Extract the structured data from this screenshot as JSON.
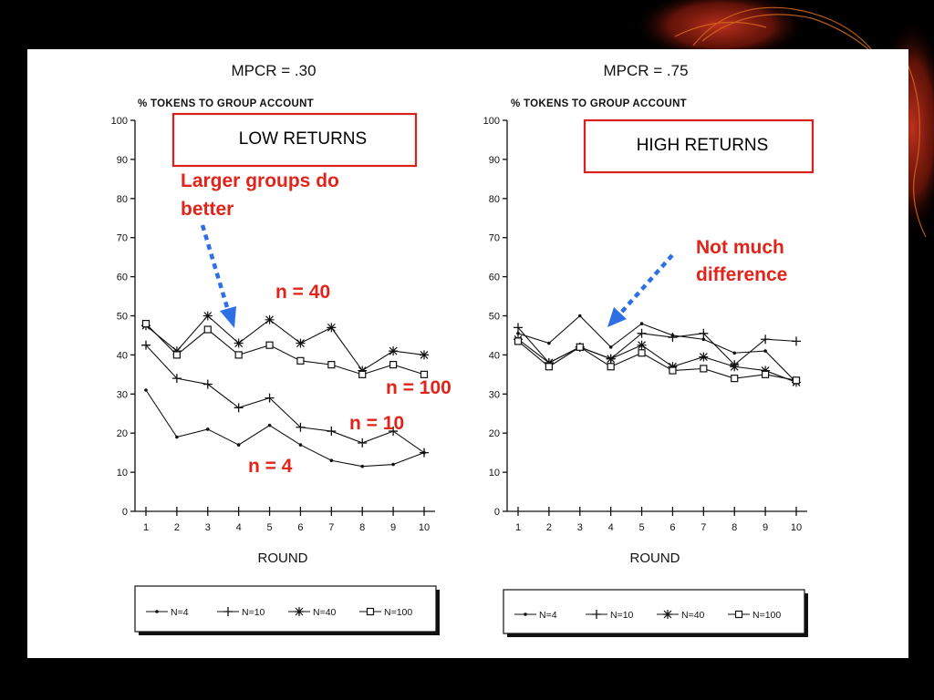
{
  "chart_data": [
    {
      "type": "line",
      "title": "MPCR = .30",
      "ylabel": "% TOKENS TO GROUP ACCOUNT",
      "xlabel": "ROUND",
      "ylim": [
        0,
        100
      ],
      "yticks": [
        0,
        10,
        20,
        30,
        40,
        50,
        60,
        70,
        80,
        90,
        100
      ],
      "x": [
        1,
        2,
        3,
        4,
        5,
        6,
        7,
        8,
        9,
        10
      ],
      "legend_position": "bottom",
      "series": [
        {
          "name": "N=4",
          "marker": "dot",
          "values": [
            31,
            19,
            21,
            17,
            22,
            17,
            13,
            11.5,
            12,
            15
          ]
        },
        {
          "name": "N=10",
          "marker": "plus",
          "values": [
            42.5,
            34,
            32.5,
            26.5,
            29,
            21.5,
            20.5,
            17.5,
            20.5,
            15
          ]
        },
        {
          "name": "N=40",
          "marker": "star",
          "values": [
            47.5,
            41,
            50,
            43,
            49,
            43,
            47,
            36,
            41,
            40
          ]
        },
        {
          "name": "N=100",
          "marker": "square",
          "values": [
            48,
            40,
            46.5,
            40,
            42.5,
            38.5,
            37.5,
            35,
            37.5,
            35
          ]
        }
      ]
    },
    {
      "type": "line",
      "title": "MPCR = .75",
      "ylabel": "% TOKENS TO GROUP ACCOUNT",
      "xlabel": "ROUND",
      "ylim": [
        0,
        100
      ],
      "yticks": [
        0,
        10,
        20,
        30,
        40,
        50,
        60,
        70,
        80,
        90,
        100
      ],
      "x": [
        1,
        2,
        3,
        4,
        5,
        6,
        7,
        8,
        9,
        10
      ],
      "legend_position": "bottom",
      "series": [
        {
          "name": "N=4",
          "marker": "dot",
          "values": [
            45.5,
            43,
            50,
            42,
            48,
            45,
            44,
            40.5,
            41,
            33
          ]
        },
        {
          "name": "N=10",
          "marker": "plus",
          "values": [
            47,
            38,
            42,
            39,
            45.5,
            44.5,
            45.5,
            37.5,
            44,
            43.5
          ]
        },
        {
          "name": "N=40",
          "marker": "star",
          "values": [
            44,
            38,
            42,
            39,
            42.5,
            37,
            39.5,
            37,
            36,
            33
          ]
        },
        {
          "name": "N=100",
          "marker": "square",
          "values": [
            43.5,
            37,
            42,
            37,
            40.5,
            36,
            36.5,
            34,
            35,
            33.5
          ]
        }
      ]
    }
  ],
  "annotations": {
    "low_returns": "LOW RETURNS",
    "high_returns": "HIGH RETURNS",
    "larger_groups_1": "Larger groups do",
    "larger_groups_2": "better",
    "not_much_1": "Not much",
    "not_much_2": "difference",
    "n40": "n = 40",
    "n100": "n = 100",
    "n10": "n = 10",
    "n4": "n = 4"
  },
  "colors": {
    "annotation_red": "#e2231a",
    "arrow_blue": "#2f6fe6",
    "background": "#000000",
    "panel": "#ffffff"
  }
}
